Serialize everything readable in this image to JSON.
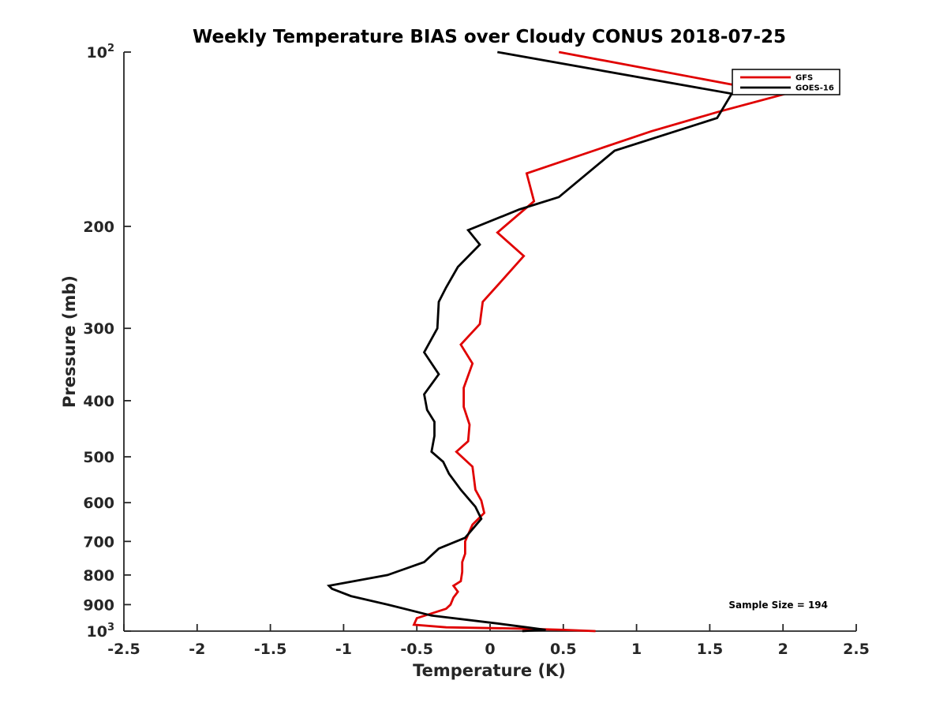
{
  "chart_data": {
    "type": "line",
    "title": "Weekly Temperature BIAS over Cloudy CONUS 2018-07-25",
    "xlabel": "Temperature (K)",
    "ylabel": "Pressure (mb)",
    "xlim": [
      -2.5,
      2.5
    ],
    "ylim": [
      100,
      1000
    ],
    "yscale": "log",
    "yreversed": true,
    "x_ticks": [
      -2.5,
      -2,
      -1.5,
      -1,
      -0.5,
      0,
      0.5,
      1,
      1.5,
      2,
      2.5
    ],
    "x_tick_labels": [
      "-2.5",
      "-2",
      "-1.5",
      "-1",
      "-0.5",
      "0",
      "0.5",
      "1",
      "1.5",
      "2",
      "2.5"
    ],
    "y_ticks": [
      200,
      300,
      400,
      500,
      600,
      700,
      800,
      900
    ],
    "y_tick_labels": [
      "200",
      "300",
      "400",
      "500",
      "600",
      "700",
      "800",
      "900"
    ],
    "y_top_label": {
      "base": "10",
      "exp": "2"
    },
    "y_bottom_label": {
      "base": "10",
      "exp": "3"
    },
    "grid": false,
    "legend_position": "top-right",
    "annotation": "Sample Size = 194",
    "series": [
      {
        "name": "GFS",
        "color": "#e00000",
        "points": [
          [
            0.47,
            100
          ],
          [
            1.75,
            115
          ],
          [
            2.02,
            118
          ],
          [
            1.55,
            127
          ],
          [
            1.1,
            137
          ],
          [
            0.25,
            162
          ],
          [
            0.3,
            181
          ],
          [
            0.05,
            205
          ],
          [
            0.23,
            225
          ],
          [
            0.1,
            245
          ],
          [
            -0.05,
            270
          ],
          [
            -0.07,
            295
          ],
          [
            -0.2,
            320
          ],
          [
            -0.12,
            345
          ],
          [
            -0.18,
            380
          ],
          [
            -0.18,
            410
          ],
          [
            -0.14,
            440
          ],
          [
            -0.15,
            470
          ],
          [
            -0.23,
            490
          ],
          [
            -0.12,
            520
          ],
          [
            -0.11,
            545
          ],
          [
            -0.1,
            570
          ],
          [
            -0.06,
            595
          ],
          [
            -0.04,
            625
          ],
          [
            -0.12,
            655
          ],
          [
            -0.17,
            700
          ],
          [
            -0.17,
            735
          ],
          [
            -0.19,
            760
          ],
          [
            -0.19,
            790
          ],
          [
            -0.2,
            820
          ],
          [
            -0.25,
            835
          ],
          [
            -0.22,
            855
          ],
          [
            -0.25,
            875
          ],
          [
            -0.27,
            900
          ],
          [
            -0.3,
            915
          ],
          [
            -0.5,
            950
          ],
          [
            -0.52,
            975
          ],
          [
            -0.3,
            985
          ],
          [
            0.2,
            990
          ],
          [
            0.5,
            995
          ],
          [
            0.72,
            1000
          ]
        ]
      },
      {
        "name": "GOES-16",
        "color": "#000000",
        "points": [
          [
            0.05,
            100
          ],
          [
            1.65,
            118
          ],
          [
            1.55,
            130
          ],
          [
            0.85,
            148
          ],
          [
            0.47,
            178
          ],
          [
            0.2,
            187
          ],
          [
            -0.15,
            203
          ],
          [
            -0.07,
            215
          ],
          [
            -0.22,
            235
          ],
          [
            -0.3,
            255
          ],
          [
            -0.35,
            270
          ],
          [
            -0.36,
            300
          ],
          [
            -0.45,
            330
          ],
          [
            -0.35,
            360
          ],
          [
            -0.45,
            390
          ],
          [
            -0.43,
            415
          ],
          [
            -0.38,
            435
          ],
          [
            -0.38,
            460
          ],
          [
            -0.4,
            490
          ],
          [
            -0.32,
            510
          ],
          [
            -0.28,
            535
          ],
          [
            -0.2,
            570
          ],
          [
            -0.1,
            610
          ],
          [
            -0.06,
            640
          ],
          [
            -0.17,
            690
          ],
          [
            -0.35,
            720
          ],
          [
            -0.45,
            760
          ],
          [
            -0.7,
            800
          ],
          [
            -1.1,
            835
          ],
          [
            -1.08,
            845
          ],
          [
            -0.95,
            870
          ],
          [
            -0.7,
            900
          ],
          [
            -0.4,
            940
          ],
          [
            0.05,
            970
          ],
          [
            0.25,
            985
          ],
          [
            0.38,
            995
          ],
          [
            0.22,
            1000
          ]
        ]
      }
    ]
  }
}
